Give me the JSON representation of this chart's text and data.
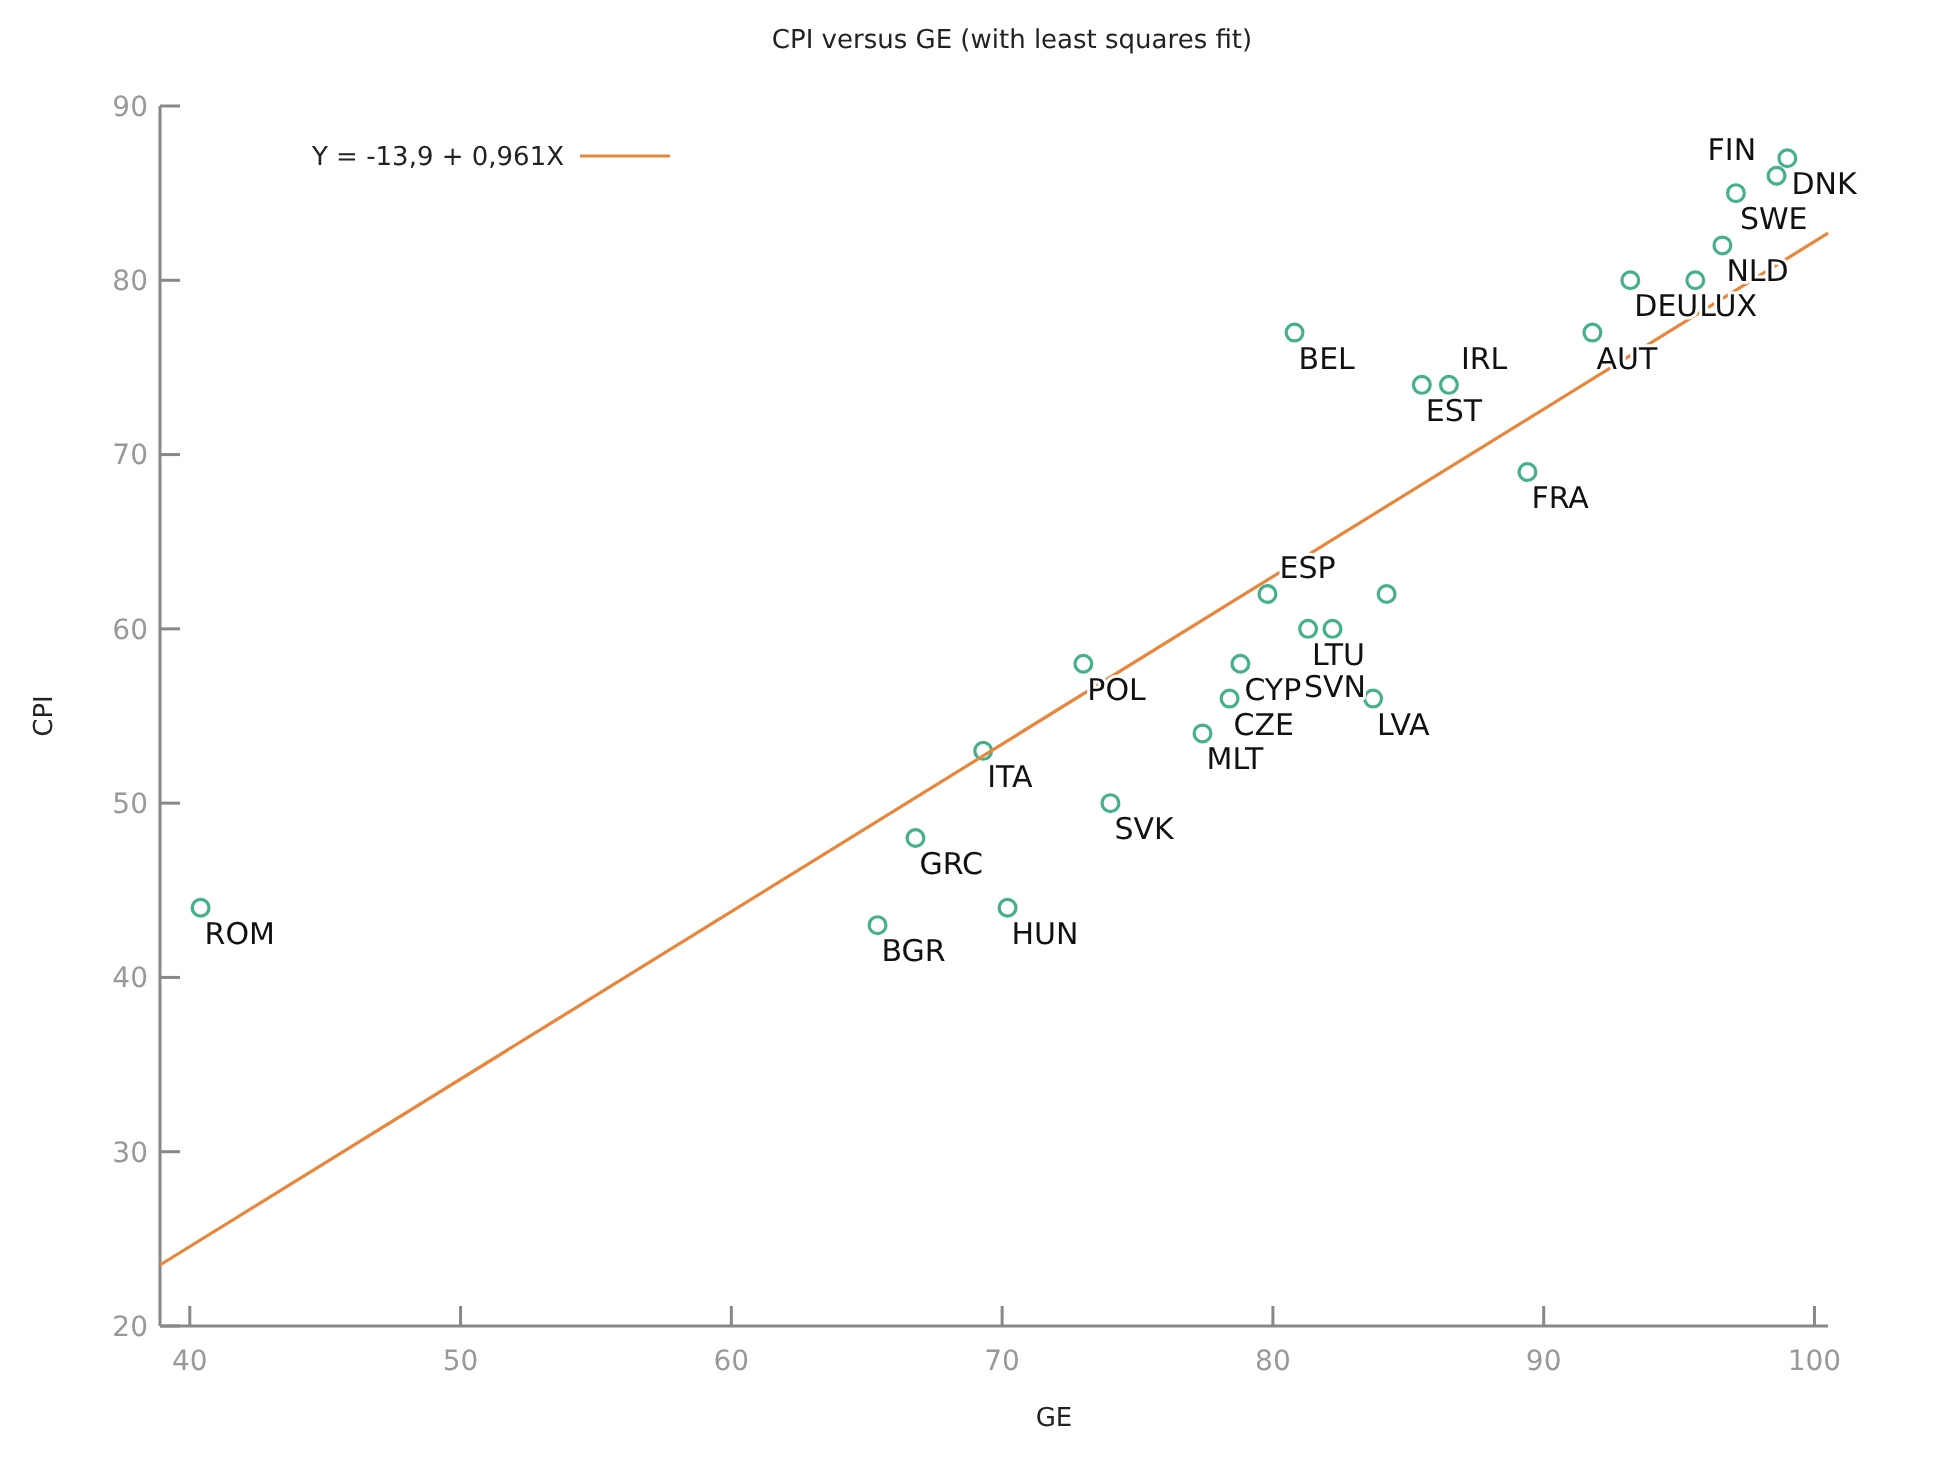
{
  "chart_data": {
    "type": "scatter",
    "title": "CPI versus GE (with least squares fit)",
    "xlabel": "GE",
    "ylabel": "CPI",
    "xlim": [
      38.9,
      100.5
    ],
    "ylim": [
      20,
      90
    ],
    "xticks": [
      40,
      50,
      60,
      70,
      80,
      90,
      100
    ],
    "yticks": [
      20,
      30,
      40,
      50,
      60,
      70,
      80,
      90
    ],
    "grid": false,
    "legend": "top left",
    "marker": "circle",
    "series": [
      {
        "color": "#44b08c",
        "x": [
          40.4,
          65.4,
          66.8,
          70.2,
          69.3,
          74.0,
          73.0,
          78.8,
          78.4,
          77.4,
          79.8,
          81.3,
          82.2,
          83.7,
          84.2,
          80.8,
          85.5,
          86.5,
          89.4,
          91.8,
          93.2,
          95.6,
          96.6,
          97.1,
          98.6,
          99.0
        ],
        "values": [
          44,
          43,
          48,
          44,
          53,
          50,
          58,
          58,
          56,
          54,
          62,
          60,
          60,
          56,
          62,
          77,
          74,
          74,
          69,
          77,
          80,
          80,
          82,
          85,
          86,
          87
        ]
      },
      {
        "type": "line",
        "name": "Y = -13,9 + 0,961X",
        "color": "#e8873c",
        "line_style": "solid",
        "marker": "none",
        "x": [
          38.9,
          100.5
        ],
        "values": [
          23.5,
          82.7
        ]
      }
    ],
    "annotations": [
      {
        "text": "ROM",
        "x": 40.4,
        "y": 44
      },
      {
        "text": "BGR",
        "x": 65.4,
        "y": 43
      },
      {
        "text": "GRC",
        "x": 66.8,
        "y": 48
      },
      {
        "text": "HUN",
        "x": 70.2,
        "y": 44
      },
      {
        "text": "ITA",
        "x": 69.3,
        "y": 53
      },
      {
        "text": "SVK",
        "x": 74.0,
        "y": 50
      },
      {
        "text": "POL",
        "x": 73.0,
        "y": 58
      },
      {
        "text": "CYP",
        "x": 78.8,
        "y": 58
      },
      {
        "text": "CZE",
        "x": 78.4,
        "y": 56
      },
      {
        "text": "MLT",
        "x": 77.4,
        "y": 54
      },
      {
        "text": "ESP",
        "x": 79.8,
        "y": 62
      },
      {
        "text": "LTU",
        "x": 81.3,
        "y": 60
      },
      {
        "text": "SVN",
        "x": 82.2,
        "y": 60
      },
      {
        "text": "LVA",
        "x": 83.7,
        "y": 56
      },
      {
        "text": "BEL",
        "x": 80.8,
        "y": 77
      },
      {
        "text": "EST",
        "x": 85.5,
        "y": 74
      },
      {
        "text": "IRL",
        "x": 86.5,
        "y": 74
      },
      {
        "text": "FRA",
        "x": 89.4,
        "y": 69
      },
      {
        "text": "AUT",
        "x": 91.8,
        "y": 77
      },
      {
        "text": "DEU",
        "x": 93.2,
        "y": 80
      },
      {
        "text": "LUX",
        "x": 95.6,
        "y": 80
      },
      {
        "text": "NLD",
        "x": 96.6,
        "y": 82
      },
      {
        "text": "SWE",
        "x": 97.1,
        "y": 85
      },
      {
        "text": "FIN",
        "x": 98.6,
        "y": 86
      },
      {
        "text": "DNK",
        "x": 99.0,
        "y": 87
      }
    ]
  }
}
